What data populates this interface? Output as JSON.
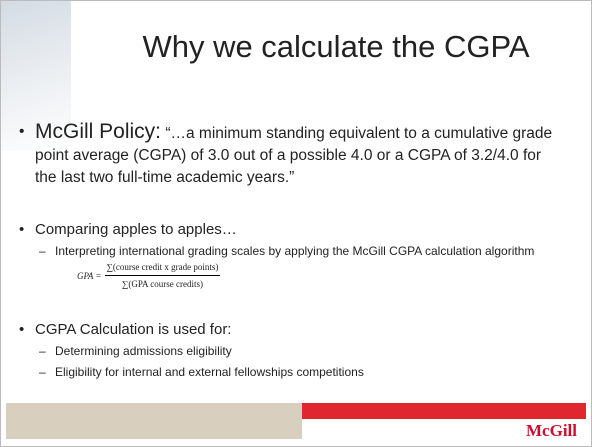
{
  "title": "Why we calculate the CGPA",
  "bullets": [
    {
      "lead": "McGill Policy:",
      "text": "“…a minimum standing equivalent to a cumulative grade point average (CGPA) of 3.0 out of a possible 4.0 or a CGPA of 3.2/4.0 for the last two full-time academic years.”"
    },
    {
      "text": "Comparing apples to apples…",
      "subs": [
        "Interpreting international grading scales by applying the McGill CGPA calculation algorithm"
      ],
      "formula": {
        "lhs": "GPA =",
        "numerator": "∑(course credit x grade points)",
        "denominator": "∑(GPA course credits)"
      }
    },
    {
      "text": "CGPA Calculation is used for:",
      "subs": [
        "Determining admissions eligibility",
        "Eligibility for internal and external fellowships competitions"
      ]
    }
  ],
  "footer": {
    "logo": "McGill"
  }
}
